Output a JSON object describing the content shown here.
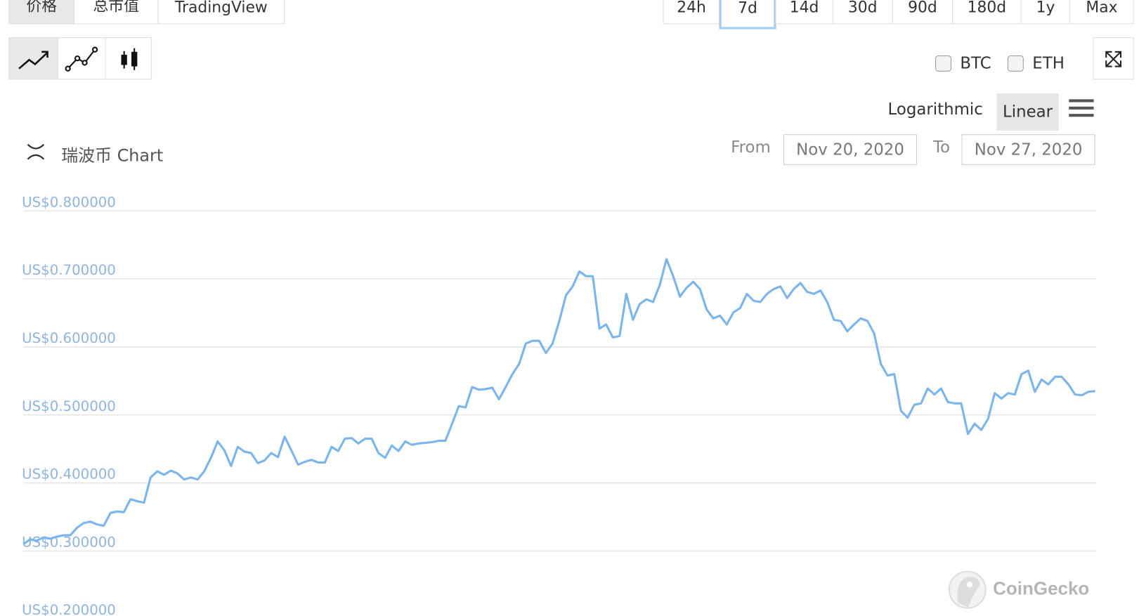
{
  "tabs": [
    "价格",
    "总市值",
    "TradingView"
  ],
  "ranges": [
    "24h",
    "7d",
    "14d",
    "30d",
    "90d",
    "180d",
    "1y",
    "Max"
  ],
  "compare": [
    "BTC",
    "ETH"
  ],
  "scale_options": [
    "Logarithmic",
    "Linear"
  ],
  "chart_title": "瑞波币 Chart",
  "date_range": {
    "from_label": "From",
    "from": "Nov 20, 2020",
    "to_label": "To",
    "to": "Nov 27, 2020"
  },
  "watermark": "CoinGecko",
  "chart_data": {
    "type": "line",
    "series": [
      {
        "color": "#7cb5ec",
        "values": [
          0.31,
          0.317,
          0.315,
          0.32,
          0.318,
          0.321,
          0.323,
          0.323,
          0.334,
          0.341,
          0.343,
          0.339,
          0.337,
          0.356,
          0.358,
          0.357,
          0.376,
          0.373,
          0.371,
          0.408,
          0.417,
          0.412,
          0.418,
          0.414,
          0.405,
          0.408,
          0.405,
          0.417,
          0.437,
          0.461,
          0.448,
          0.425,
          0.453,
          0.446,
          0.444,
          0.429,
          0.433,
          0.444,
          0.438,
          0.468,
          0.448,
          0.427,
          0.431,
          0.434,
          0.43,
          0.43,
          0.453,
          0.447,
          0.465,
          0.466,
          0.458,
          0.465,
          0.465,
          0.444,
          0.437,
          0.455,
          0.447,
          0.461,
          0.456,
          0.458,
          0.459,
          0.46,
          0.462,
          0.462,
          0.487,
          0.513,
          0.511,
          0.541,
          0.537,
          0.538,
          0.54,
          0.523,
          0.541,
          0.56,
          0.575,
          0.605,
          0.609,
          0.609,
          0.591,
          0.605,
          0.638,
          0.676,
          0.689,
          0.711,
          0.704,
          0.704,
          0.627,
          0.633,
          0.614,
          0.616,
          0.678,
          0.64,
          0.663,
          0.67,
          0.666,
          0.691,
          0.729,
          0.704,
          0.674,
          0.687,
          0.696,
          0.685,
          0.655,
          0.642,
          0.646,
          0.633,
          0.651,
          0.657,
          0.678,
          0.668,
          0.666,
          0.678,
          0.685,
          0.689,
          0.672,
          0.685,
          0.694,
          0.681,
          0.678,
          0.683,
          0.666,
          0.64,
          0.638,
          0.623,
          0.633,
          0.642,
          0.638,
          0.62,
          0.575,
          0.558,
          0.56,
          0.506,
          0.496,
          0.515,
          0.517,
          0.539,
          0.53,
          0.539,
          0.519,
          0.517,
          0.517,
          0.472,
          0.487,
          0.478,
          0.494,
          0.532,
          0.524,
          0.532,
          0.53,
          0.56,
          0.565,
          0.534,
          0.552,
          0.545,
          0.556,
          0.556,
          0.545,
          0.53,
          0.529,
          0.534,
          0.535
        ]
      }
    ],
    "ylim": [
      0.2,
      0.8
    ],
    "yticks": [
      {
        "value": 0.2,
        "label": "US$0.200000"
      },
      {
        "value": 0.3,
        "label": "US$0.300000"
      },
      {
        "value": 0.4,
        "label": "US$0.400000"
      },
      {
        "value": 0.5,
        "label": "US$0.500000"
      },
      {
        "value": 0.6,
        "label": "US$0.600000"
      },
      {
        "value": 0.7,
        "label": "US$0.700000"
      },
      {
        "value": 0.8,
        "label": "US$0.800000"
      }
    ],
    "grid": true
  }
}
